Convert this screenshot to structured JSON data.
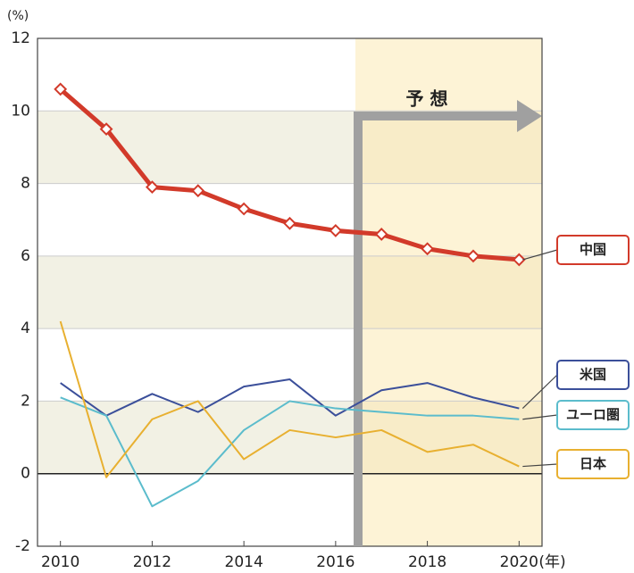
{
  "chart_data": {
    "type": "line",
    "y_label": "(%)",
    "x_label": "(年)",
    "annotation": "予 想",
    "x": [
      2010,
      2011,
      2012,
      2013,
      2014,
      2015,
      2016,
      2017,
      2018,
      2019,
      2020
    ],
    "xlim": [
      2009.5,
      2020.5
    ],
    "xticks": [
      2010,
      2012,
      2014,
      2016,
      2018,
      2020
    ],
    "ylim": [
      -2,
      12
    ],
    "yticks": [
      -2,
      0,
      2,
      4,
      6,
      8,
      10,
      12
    ],
    "series": [
      {
        "name": "中国",
        "color": "#d23a2a",
        "values": [
          10.6,
          9.5,
          7.9,
          7.8,
          7.3,
          6.9,
          6.7,
          6.6,
          6.2,
          6.0,
          5.9
        ]
      },
      {
        "name": "米国",
        "color": "#3b4f9a",
        "values": [
          2.5,
          1.6,
          2.2,
          1.7,
          2.4,
          2.6,
          1.6,
          2.3,
          2.5,
          2.1,
          1.8
        ]
      },
      {
        "name": "ユーロ圏",
        "color": "#5bbccc",
        "values": [
          2.1,
          1.6,
          -0.9,
          -0.2,
          1.2,
          2.0,
          1.8,
          1.7,
          1.6,
          1.6,
          1.5
        ]
      },
      {
        "name": "日本",
        "color": "#e8b030",
        "values": [
          4.2,
          -0.1,
          1.5,
          2.0,
          0.4,
          1.2,
          1.0,
          1.2,
          0.6,
          0.8,
          0.2
        ]
      }
    ]
  }
}
